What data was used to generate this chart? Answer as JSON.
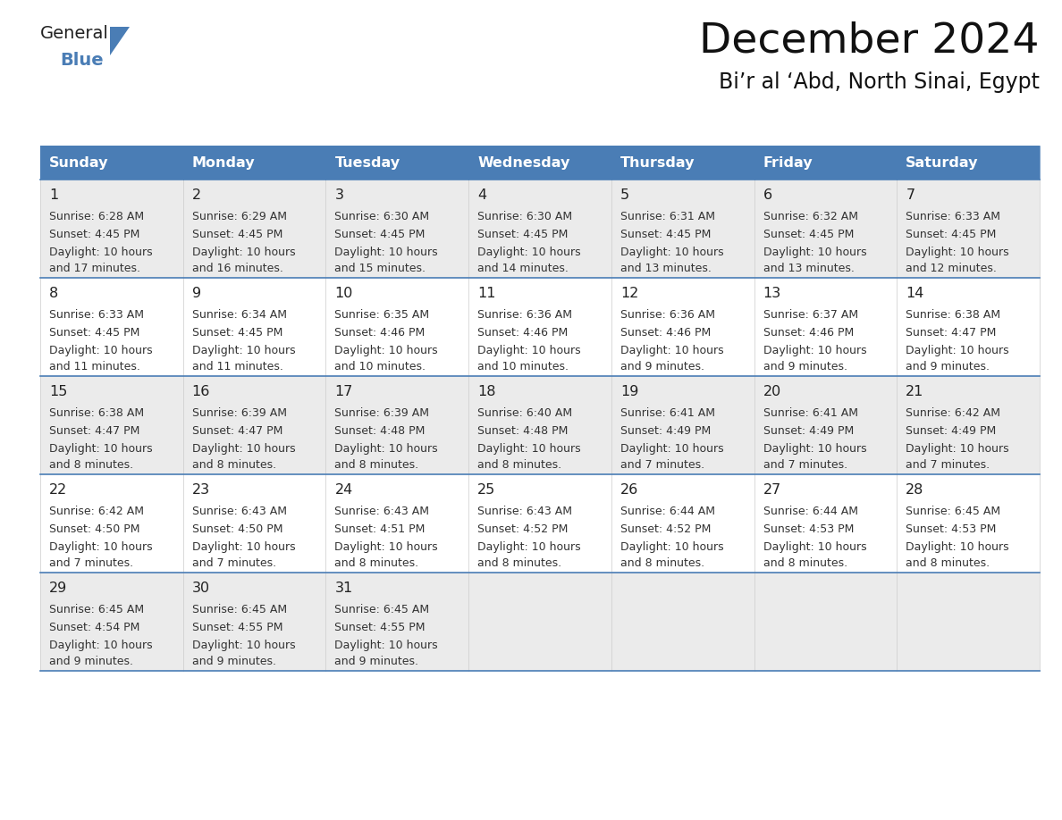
{
  "title": "December 2024",
  "subtitle": "Bi’r al ‘Abd, North Sinai, Egypt",
  "header_color": "#4a7db5",
  "header_text_color": "#ffffff",
  "row_bg_even": "#ebebeb",
  "row_bg_odd": "#ffffff",
  "text_color": "#222222",
  "cell_text_color": "#333333",
  "separator_color": "#4a7db5",
  "days_of_week": [
    "Sunday",
    "Monday",
    "Tuesday",
    "Wednesday",
    "Thursday",
    "Friday",
    "Saturday"
  ],
  "weeks": [
    [
      {
        "day": 1,
        "sunrise": "6:28 AM",
        "sunset": "4:45 PM",
        "daylight": "10 hours and 17 minutes."
      },
      {
        "day": 2,
        "sunrise": "6:29 AM",
        "sunset": "4:45 PM",
        "daylight": "10 hours and 16 minutes."
      },
      {
        "day": 3,
        "sunrise": "6:30 AM",
        "sunset": "4:45 PM",
        "daylight": "10 hours and 15 minutes."
      },
      {
        "day": 4,
        "sunrise": "6:30 AM",
        "sunset": "4:45 PM",
        "daylight": "10 hours and 14 minutes."
      },
      {
        "day": 5,
        "sunrise": "6:31 AM",
        "sunset": "4:45 PM",
        "daylight": "10 hours and 13 minutes."
      },
      {
        "day": 6,
        "sunrise": "6:32 AM",
        "sunset": "4:45 PM",
        "daylight": "10 hours and 13 minutes."
      },
      {
        "day": 7,
        "sunrise": "6:33 AM",
        "sunset": "4:45 PM",
        "daylight": "10 hours and 12 minutes."
      }
    ],
    [
      {
        "day": 8,
        "sunrise": "6:33 AM",
        "sunset": "4:45 PM",
        "daylight": "10 hours and 11 minutes."
      },
      {
        "day": 9,
        "sunrise": "6:34 AM",
        "sunset": "4:45 PM",
        "daylight": "10 hours and 11 minutes."
      },
      {
        "day": 10,
        "sunrise": "6:35 AM",
        "sunset": "4:46 PM",
        "daylight": "10 hours and 10 minutes."
      },
      {
        "day": 11,
        "sunrise": "6:36 AM",
        "sunset": "4:46 PM",
        "daylight": "10 hours and 10 minutes."
      },
      {
        "day": 12,
        "sunrise": "6:36 AM",
        "sunset": "4:46 PM",
        "daylight": "10 hours and 9 minutes."
      },
      {
        "day": 13,
        "sunrise": "6:37 AM",
        "sunset": "4:46 PM",
        "daylight": "10 hours and 9 minutes."
      },
      {
        "day": 14,
        "sunrise": "6:38 AM",
        "sunset": "4:47 PM",
        "daylight": "10 hours and 9 minutes."
      }
    ],
    [
      {
        "day": 15,
        "sunrise": "6:38 AM",
        "sunset": "4:47 PM",
        "daylight": "10 hours and 8 minutes."
      },
      {
        "day": 16,
        "sunrise": "6:39 AM",
        "sunset": "4:47 PM",
        "daylight": "10 hours and 8 minutes."
      },
      {
        "day": 17,
        "sunrise": "6:39 AM",
        "sunset": "4:48 PM",
        "daylight": "10 hours and 8 minutes."
      },
      {
        "day": 18,
        "sunrise": "6:40 AM",
        "sunset": "4:48 PM",
        "daylight": "10 hours and 8 minutes."
      },
      {
        "day": 19,
        "sunrise": "6:41 AM",
        "sunset": "4:49 PM",
        "daylight": "10 hours and 7 minutes."
      },
      {
        "day": 20,
        "sunrise": "6:41 AM",
        "sunset": "4:49 PM",
        "daylight": "10 hours and 7 minutes."
      },
      {
        "day": 21,
        "sunrise": "6:42 AM",
        "sunset": "4:49 PM",
        "daylight": "10 hours and 7 minutes."
      }
    ],
    [
      {
        "day": 22,
        "sunrise": "6:42 AM",
        "sunset": "4:50 PM",
        "daylight": "10 hours and 7 minutes."
      },
      {
        "day": 23,
        "sunrise": "6:43 AM",
        "sunset": "4:50 PM",
        "daylight": "10 hours and 7 minutes."
      },
      {
        "day": 24,
        "sunrise": "6:43 AM",
        "sunset": "4:51 PM",
        "daylight": "10 hours and 8 minutes."
      },
      {
        "day": 25,
        "sunrise": "6:43 AM",
        "sunset": "4:52 PM",
        "daylight": "10 hours and 8 minutes."
      },
      {
        "day": 26,
        "sunrise": "6:44 AM",
        "sunset": "4:52 PM",
        "daylight": "10 hours and 8 minutes."
      },
      {
        "day": 27,
        "sunrise": "6:44 AM",
        "sunset": "4:53 PM",
        "daylight": "10 hours and 8 minutes."
      },
      {
        "day": 28,
        "sunrise": "6:45 AM",
        "sunset": "4:53 PM",
        "daylight": "10 hours and 8 minutes."
      }
    ],
    [
      {
        "day": 29,
        "sunrise": "6:45 AM",
        "sunset": "4:54 PM",
        "daylight": "10 hours and 9 minutes."
      },
      {
        "day": 30,
        "sunrise": "6:45 AM",
        "sunset": "4:55 PM",
        "daylight": "10 hours and 9 minutes."
      },
      {
        "day": 31,
        "sunrise": "6:45 AM",
        "sunset": "4:55 PM",
        "daylight": "10 hours and 9 minutes."
      },
      null,
      null,
      null,
      null
    ]
  ],
  "logo_color_general": "#222222",
  "logo_color_blue": "#4a7db5",
  "logo_triangle_color": "#4a7db5"
}
